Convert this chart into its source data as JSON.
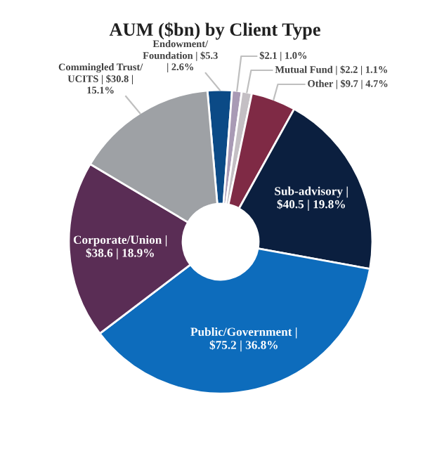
{
  "chart_data": {
    "type": "donut",
    "title": "AUM ($bn) by Client Type",
    "categories": [
      "Endowment/Foundation |",
      null,
      "Mutual Fund |",
      "Other |",
      "Sub-advisory |",
      "Public/Government |",
      "Corporate/Union |",
      "Commingled Trust/UCITS |"
    ],
    "values": [
      5.3,
      2.1,
      2.2,
      9.7,
      40.5,
      75.2,
      38.6,
      30.8
    ],
    "value_labels": [
      "$5.3 | 2.6%",
      "$2.1 | 1.0%",
      "$2.2 | 1.1%",
      "$9.7 | 4.7%",
      "$40.5 | 19.8%",
      "$75.2 | 36.8%",
      "$38.6 | 18.9%",
      "$30.8 | 15.1%"
    ],
    "colors": [
      "#0b4a86",
      "#a99ab5",
      "#c4bfc4",
      "#7f2a45",
      "#0b1f3f",
      "#0d6cbc",
      "#5a2d55",
      "#9ea1a5"
    ],
    "legend": false
  }
}
